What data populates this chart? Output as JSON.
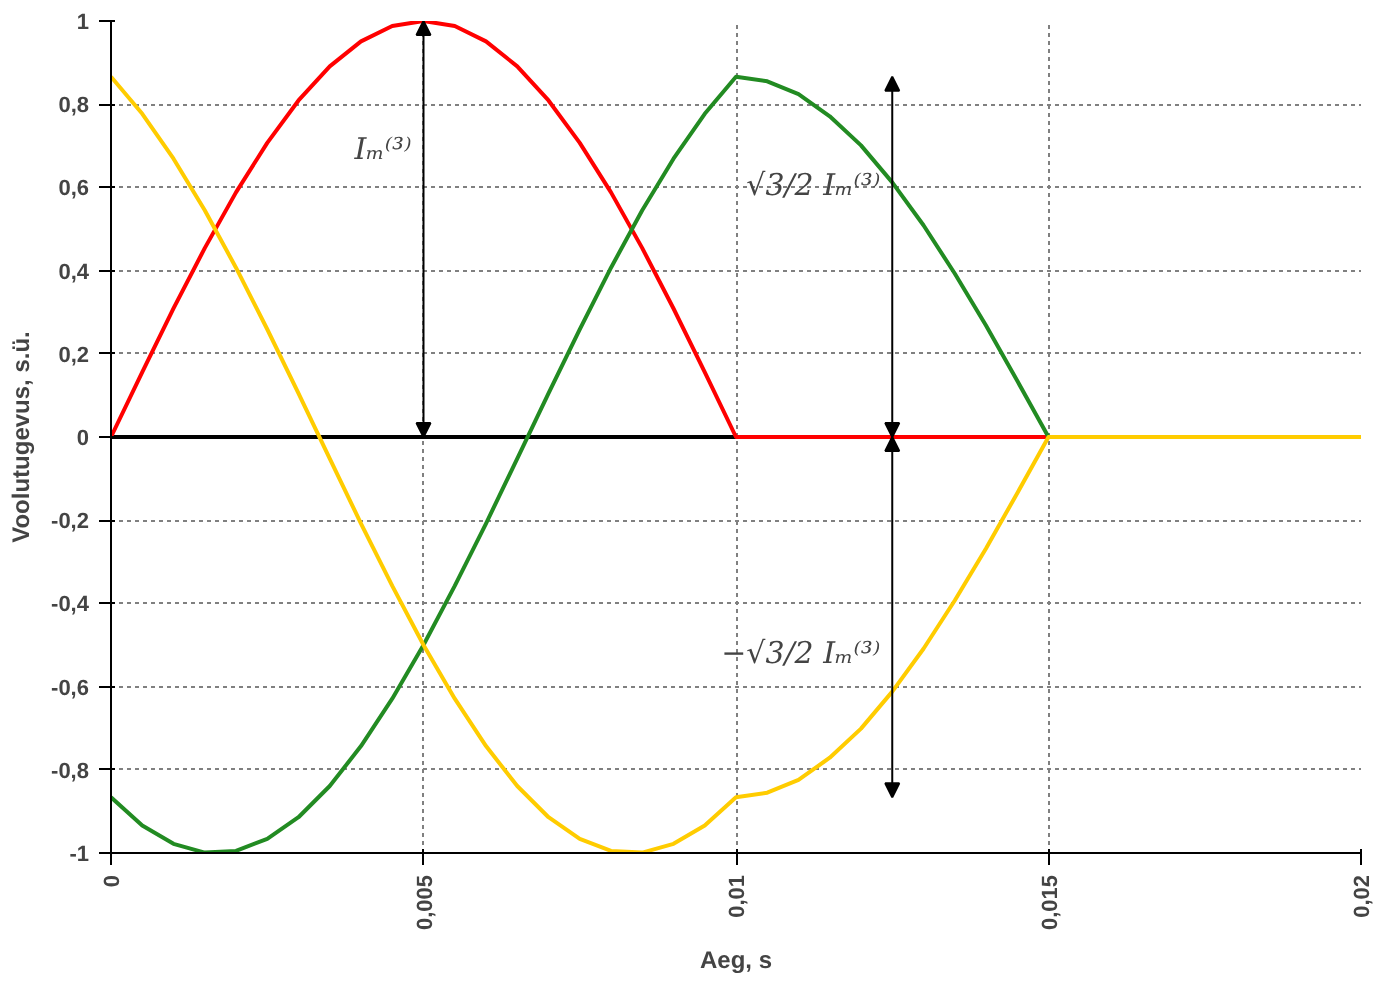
{
  "chart_data": {
    "type": "line",
    "xlabel": "Aeg, s",
    "ylabel": "Voolutugevus, s.ü.",
    "x": [
      0,
      0.0005,
      0.001,
      0.0015,
      0.002,
      0.0025,
      0.003,
      0.0035,
      0.004,
      0.0045,
      0.005,
      0.0055,
      0.006,
      0.0065,
      0.007,
      0.0075,
      0.008,
      0.0085,
      0.009,
      0.0095,
      0.01,
      0.0105,
      0.011,
      0.0115,
      0.012,
      0.0125,
      0.013,
      0.0135,
      0.014,
      0.0145,
      0.015,
      0.0155,
      0.016,
      0.0165,
      0.017,
      0.0175,
      0.018,
      0.0185,
      0.019,
      0.0195,
      0.02
    ],
    "series": [
      {
        "color": "#ff0000",
        "values": [
          0,
          0.156,
          0.309,
          0.454,
          0.588,
          0.707,
          0.809,
          0.891,
          0.951,
          0.988,
          1,
          0.988,
          0.951,
          0.891,
          0.809,
          0.707,
          0.588,
          0.454,
          0.309,
          0.156,
          0,
          0,
          0,
          0,
          0,
          0,
          0,
          0,
          0,
          0,
          0,
          null,
          null,
          null,
          null,
          null,
          null,
          null,
          null,
          null,
          null
        ]
      },
      {
        "color": "#228b22",
        "values": [
          -0.866,
          -0.934,
          -0.978,
          -0.999,
          -0.995,
          -0.966,
          -0.914,
          -0.839,
          -0.743,
          -0.629,
          -0.5,
          -0.358,
          -0.208,
          -0.052,
          0.105,
          0.259,
          0.407,
          0.545,
          0.669,
          0.777,
          0.866,
          0.855,
          0.824,
          0.771,
          0.701,
          0.612,
          0.509,
          0.393,
          0.268,
          0.135,
          0,
          null,
          null,
          null,
          null,
          null,
          null,
          null,
          null,
          null,
          null
        ]
      },
      {
        "color": "#ffcc00",
        "values": [
          0.866,
          0.777,
          0.669,
          0.545,
          0.407,
          0.259,
          0.105,
          -0.052,
          -0.208,
          -0.358,
          -0.5,
          -0.629,
          -0.743,
          -0.839,
          -0.914,
          -0.966,
          -0.995,
          -0.999,
          -0.978,
          -0.934,
          -0.866,
          -0.855,
          -0.824,
          -0.771,
          -0.701,
          -0.612,
          -0.509,
          -0.393,
          -0.268,
          -0.135,
          0,
          0,
          0,
          0,
          0,
          0,
          0,
          0,
          0,
          0,
          0
        ]
      }
    ],
    "xlim": [
      0,
      0.02
    ],
    "xticks": [
      0,
      {
        "value": 0.005,
        "label": "0,005"
      },
      {
        "value": 0.01,
        "label": "0,01"
      },
      {
        "value": 0.015,
        "label": "0,015"
      },
      {
        "value": 0.02,
        "label": "0,02"
      }
    ],
    "ylim": [
      -1,
      1
    ],
    "yticks": [
      -1,
      {
        "value": -0.8,
        "label": "-0,8"
      },
      {
        "value": -0.6,
        "label": "-0,6"
      },
      {
        "value": -0.4,
        "label": "-0,4"
      },
      {
        "value": -0.2,
        "label": "-0,2"
      },
      0,
      {
        "value": 0.2,
        "label": "0,2"
      },
      {
        "value": 0.4,
        "label": "0,4"
      },
      {
        "value": 0.6,
        "label": "0,6"
      },
      {
        "value": 0.8,
        "label": "0,8"
      },
      1
    ],
    "grid": true,
    "marker": "none",
    "line_style": "solid",
    "ref_lines": [
      {
        "axis": "y",
        "value": 0,
        "color": "#000000"
      }
    ],
    "annotations": [
      "Iₘ⁽³⁾",
      "√3/2 Iₘ⁽³⁾",
      "−√3/2 Iₘ⁽³⁾"
    ]
  }
}
